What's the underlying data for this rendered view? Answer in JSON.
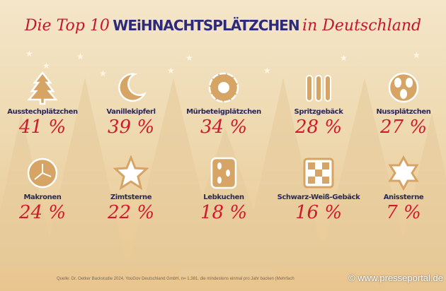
{
  "title": {
    "part1": "Die Top 10",
    "part2": "WEiHNACHTSPLÄTZCHEN",
    "part3": "in Deutschland"
  },
  "colors": {
    "title_red": "#c4172c",
    "title_blue": "#2d2a7c",
    "percent": "#d01a2c",
    "cookie": "#d6a565",
    "label": "#2a2857"
  },
  "chart_data": {
    "type": "table",
    "title": "Die Top 10 WEiHNACHTSPLÄTZCHEN in Deutschland",
    "unit": "%",
    "items": [
      {
        "name": "Ausstechplätzchen",
        "value": 41,
        "label": "41 %",
        "icon": "christmas-tree-cookie-icon"
      },
      {
        "name": "Vanillekipferl",
        "value": 39,
        "label": "39 %",
        "icon": "crescent-cookie-icon"
      },
      {
        "name": "Mürbeteigplätzchen",
        "value": 34,
        "label": "34 %",
        "icon": "flower-cookie-icon"
      },
      {
        "name": "Spritzgebäck",
        "value": 28,
        "label": "28 %",
        "icon": "piped-cookie-icon"
      },
      {
        "name": "Nussplätzchen",
        "value": 27,
        "label": "27 %",
        "icon": "nut-cookie-icon"
      },
      {
        "name": "Makronen",
        "value": 24,
        "label": "24 %",
        "icon": "macaroon-icon"
      },
      {
        "name": "Zimtsterne",
        "value": 22,
        "label": "22 %",
        "icon": "star-cookie-icon"
      },
      {
        "name": "Lebkuchen",
        "value": 18,
        "label": "18 %",
        "icon": "gingerbread-icon"
      },
      {
        "name": "Schwarz-Weiß-Gebäck",
        "value": 16,
        "label": "16 %",
        "icon": "checkerboard-cookie-icon"
      },
      {
        "name": "Anissterne",
        "value": 7,
        "label": "7 %",
        "icon": "anise-star-icon"
      }
    ]
  },
  "source": "Quelle: Dr. Oetker Backstudie 2024, YouGov Deutschland GmbH, n= 1.381, die mindestens einmal pro Jahr backen (Mehrfach",
  "watermark": "© www.presseportal.de"
}
